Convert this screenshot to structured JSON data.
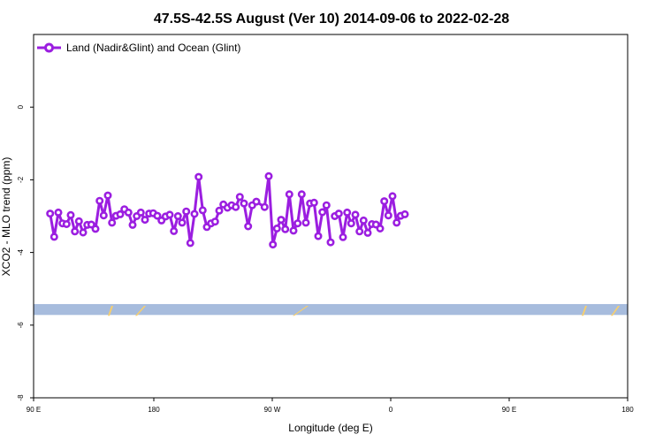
{
  "chart_data": {
    "type": "line",
    "title": "47.5S-42.5S August (Ver 10)   2014-09-06 to 2022-02-28",
    "xlabel": "Longitude (deg E)",
    "ylabel": "XCO2 - MLO trend (ppm)",
    "xlim": [
      90,
      450
    ],
    "ylim": [
      -8,
      2
    ],
    "x_ticks": [
      {
        "value": 90,
        "label": "90 E"
      },
      {
        "value": 180,
        "label": "180"
      },
      {
        "value": 270,
        "label": "90 W"
      },
      {
        "value": 360,
        "label": "0"
      },
      {
        "value": 450,
        "label": "90 E"
      },
      {
        "value": 540,
        "label": "180"
      }
    ],
    "y_ticks": [
      {
        "value": 0,
        "label": "0"
      },
      {
        "value": -2,
        "label": "-2"
      },
      {
        "value": -4,
        "label": "-4"
      },
      {
        "value": -6,
        "label": "-6"
      },
      {
        "value": -8,
        "label": "-8"
      }
    ],
    "legend_position": "top-left",
    "grid": false,
    "series": [
      {
        "name": "Land (Nadir&Glint) and Ocean (Glint)",
        "color": "#9b1ee0",
        "segments": [
          [
            [
              100,
              -2.93
            ],
            [
              102.5,
              -3.57
            ],
            [
              105,
              -2.9
            ],
            [
              107.5,
              -3.2
            ],
            [
              110,
              -3.22
            ],
            [
              112.5,
              -2.97
            ],
            [
              115,
              -3.42
            ],
            [
              117.5,
              -3.14
            ],
            [
              120,
              -3.45
            ],
            [
              122.5,
              -3.24
            ],
            [
              125,
              -3.23
            ],
            [
              127.5,
              -3.35
            ],
            [
              130,
              -2.58
            ],
            [
              132.5,
              -2.98
            ],
            [
              135,
              -2.43
            ],
            [
              137.5,
              -3.18
            ],
            [
              140,
              -2.99
            ],
            [
              142.5,
              -2.95
            ],
            [
              145,
              -2.81
            ],
            [
              147.5,
              -2.9
            ],
            [
              150,
              -3.24
            ],
            [
              152.5,
              -3.0
            ],
            [
              155,
              -2.9
            ],
            [
              157.5,
              -3.1
            ],
            [
              160,
              -2.93
            ],
            [
              162.5,
              -2.92
            ],
            [
              165,
              -2.99
            ],
            [
              167.5,
              -3.12
            ],
            [
              170,
              -3.01
            ],
            [
              172.5,
              -2.96
            ],
            [
              175,
              -3.41
            ],
            [
              177.5,
              -3.0
            ],
            [
              180,
              -3.18
            ],
            [
              182.5,
              -2.87
            ],
            [
              185,
              -3.74
            ],
            [
              187.5,
              -2.94
            ],
            [
              190,
              -1.92
            ],
            [
              192.5,
              -2.84
            ],
            [
              195,
              -3.3
            ],
            [
              197.5,
              -3.2
            ],
            [
              200,
              -3.15
            ],
            [
              202.5,
              -2.85
            ],
            [
              205,
              -2.68
            ],
            [
              207.5,
              -2.77
            ],
            [
              210,
              -2.7
            ],
            [
              212.5,
              -2.75
            ],
            [
              215,
              -2.47
            ],
            [
              217.5,
              -2.65
            ],
            [
              220,
              -3.28
            ],
            [
              222.5,
              -2.7
            ],
            [
              225,
              -2.6
            ],
            [
              230,
              -2.75
            ],
            [
              232.5,
              -1.9
            ],
            [
              235,
              -3.78
            ],
            [
              237.5,
              -3.34
            ],
            [
              240,
              -3.1
            ],
            [
              242.5,
              -3.36
            ],
            [
              245,
              -2.4
            ],
            [
              247.5,
              -3.4
            ],
            [
              250,
              -3.2
            ],
            [
              252.5,
              -2.4
            ],
            [
              255,
              -3.18
            ],
            [
              257.5,
              -2.65
            ],
            [
              260,
              -2.63
            ],
            [
              262.5,
              -3.55
            ],
            [
              265,
              -2.89
            ],
            [
              267.5,
              -2.7
            ],
            [
              270,
              -3.72
            ]
          ],
          [
            [
              272.5,
              -3.0
            ]
          ],
          [
            [
              275,
              -2.93
            ],
            [
              277.5,
              -3.58
            ],
            [
              280,
              -2.9
            ],
            [
              282.5,
              -3.2
            ],
            [
              285,
              -2.96
            ],
            [
              287.5,
              -3.42
            ],
            [
              290,
              -3.12
            ],
            [
              292.5,
              -3.46
            ],
            [
              295,
              -3.22
            ],
            [
              297.5,
              -3.23
            ],
            [
              300,
              -3.34
            ],
            [
              302.5,
              -2.59
            ],
            [
              305,
              -2.98
            ],
            [
              307.5,
              -2.45
            ],
            [
              310,
              -3.18
            ],
            [
              312.5,
              -2.99
            ],
            [
              315,
              -2.95
            ]
          ]
        ]
      }
    ],
    "bands": [
      {
        "y_from": -5.72,
        "y_to": -5.42,
        "color": "#a7bcdd"
      }
    ],
    "band_marks_color": "#f8cf6c"
  }
}
